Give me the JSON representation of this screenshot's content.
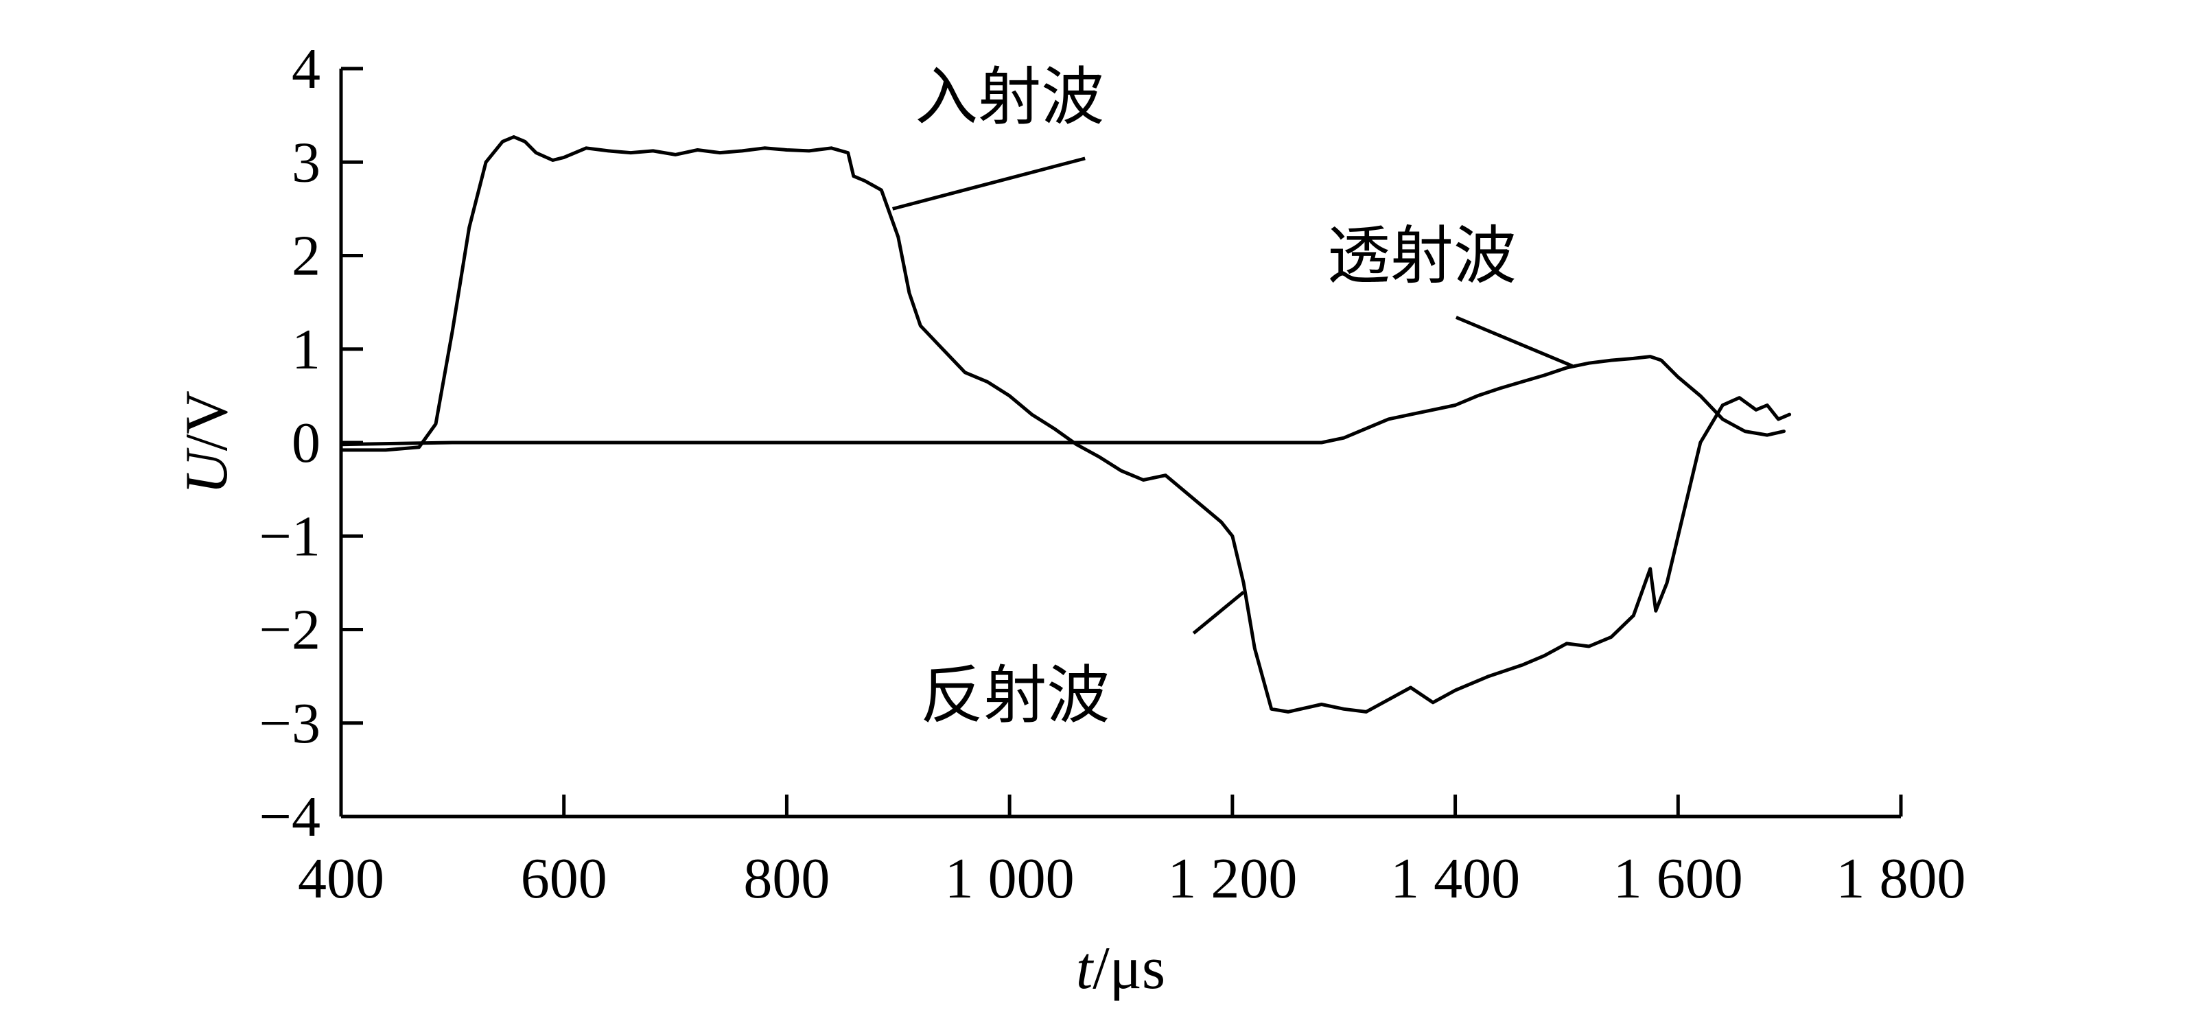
{
  "chart_data": {
    "type": "line",
    "title": "",
    "xlabel": {
      "italic": "t",
      "rest": "/μs"
    },
    "ylabel": {
      "italic": "U",
      "rest": "/V"
    },
    "xlim": [
      400,
      1800
    ],
    "ylim": [
      -4,
      4
    ],
    "x_ticks": [
      400,
      600,
      800,
      1000,
      1200,
      1400,
      1600,
      1800
    ],
    "x_tick_labels": [
      "400",
      "600",
      "800",
      "1 000",
      "1 200",
      "1 400",
      "1 600",
      "1 800"
    ],
    "y_ticks": [
      4,
      3,
      2,
      1,
      0,
      -1,
      -2,
      -3,
      -4
    ],
    "y_tick_labels": [
      "4",
      "3",
      "2",
      "1",
      "0",
      "−1",
      "−2",
      "−3",
      "−4"
    ],
    "grid": false,
    "legend": "none",
    "series": [
      {
        "name": "入射波",
        "label_anchor": [
          895,
          2.5
        ],
        "label_text_at": [
          1000,
          3.7
        ],
        "x": [
          400,
          440,
          470,
          485,
          500,
          515,
          530,
          545,
          555,
          565,
          575,
          590,
          600,
          620,
          640,
          660,
          680,
          700,
          720,
          740,
          760,
          780,
          800,
          820,
          840,
          855,
          860,
          870,
          885,
          900,
          910,
          920,
          940,
          960,
          980,
          1000,
          1020,
          1040,
          1060,
          1080,
          1100,
          1120,
          1140,
          1160,
          1180,
          1190,
          1200,
          1210,
          1220,
          1235,
          1250,
          1280,
          1300,
          1320,
          1340,
          1360,
          1380,
          1400,
          1430,
          1460,
          1480,
          1500,
          1520,
          1540,
          1560,
          1575,
          1580,
          1590,
          1600,
          1620,
          1640,
          1655,
          1670,
          1680,
          1690,
          1700
        ],
        "y": [
          -0.08,
          -0.08,
          -0.05,
          0.2,
          1.2,
          2.3,
          3.0,
          3.22,
          3.27,
          3.22,
          3.1,
          3.02,
          3.05,
          3.15,
          3.12,
          3.1,
          3.12,
          3.08,
          3.13,
          3.1,
          3.12,
          3.15,
          3.13,
          3.12,
          3.15,
          3.1,
          2.85,
          2.8,
          2.7,
          2.2,
          1.6,
          1.25,
          1.0,
          0.75,
          0.65,
          0.5,
          0.3,
          0.15,
          -0.02,
          -0.15,
          -0.3,
          -0.4,
          -0.35,
          -0.55,
          -0.75,
          -0.85,
          -1.0,
          -1.5,
          -2.2,
          -2.85,
          -2.88,
          -2.8,
          -2.85,
          -2.88,
          -2.75,
          -2.62,
          -2.78,
          -2.65,
          -2.5,
          -2.38,
          -2.28,
          -2.15,
          -2.18,
          -2.08,
          -1.85,
          -1.35,
          -1.8,
          -1.5,
          -1.0,
          0.0,
          0.4,
          0.48,
          0.35,
          0.4,
          0.25,
          0.3
        ]
      },
      {
        "name": "反射波",
        "label_anchor": [
          1210,
          -1.6
        ],
        "label_text_at": [
          1005,
          -2.7
        ],
        "x": [],
        "y": []
      },
      {
        "name": "透射波",
        "label_anchor": [
          1505,
          0.82
        ],
        "label_text_at": [
          1370,
          2.0
        ],
        "x": [
          400,
          500,
          600,
          700,
          800,
          900,
          1000,
          1100,
          1200,
          1280,
          1300,
          1320,
          1340,
          1360,
          1380,
          1400,
          1420,
          1440,
          1460,
          1480,
          1500,
          1520,
          1540,
          1560,
          1575,
          1585,
          1600,
          1620,
          1640,
          1660,
          1680,
          1695
        ],
        "y": [
          -0.02,
          0.0,
          0.0,
          0.0,
          0.0,
          0.0,
          0.0,
          0.0,
          0.0,
          0.0,
          0.05,
          0.15,
          0.25,
          0.3,
          0.35,
          0.4,
          0.5,
          0.58,
          0.65,
          0.72,
          0.8,
          0.85,
          0.88,
          0.9,
          0.92,
          0.88,
          0.7,
          0.5,
          0.25,
          0.12,
          0.08,
          0.12
        ]
      }
    ]
  }
}
